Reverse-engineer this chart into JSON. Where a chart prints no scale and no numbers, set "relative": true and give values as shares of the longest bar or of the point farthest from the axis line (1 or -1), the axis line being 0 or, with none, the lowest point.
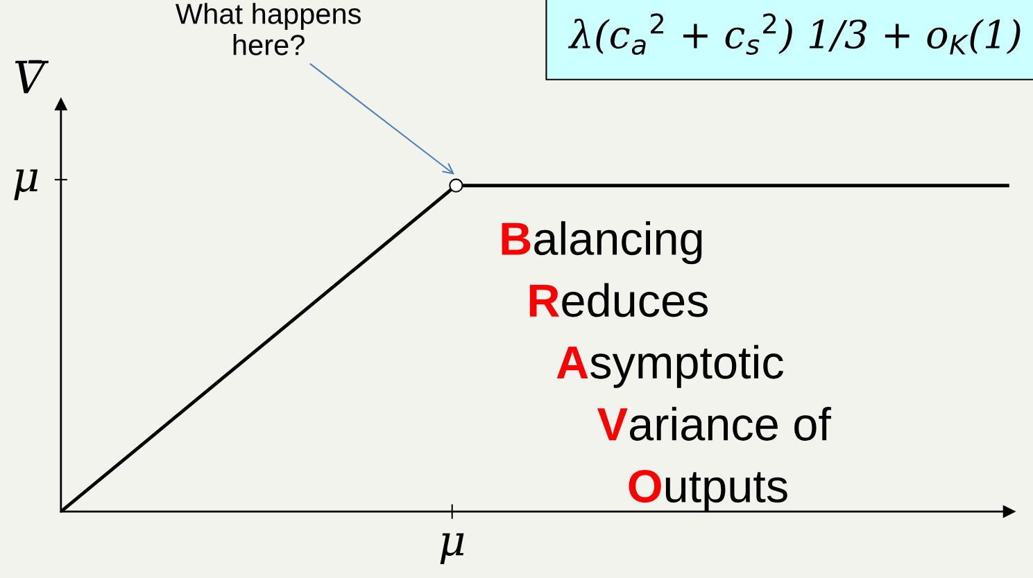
{
  "chart_data": {
    "type": "line",
    "ylabel": "V̄",
    "relative": true,
    "categories": [
      null,
      null,
      null,
      null,
      null,
      null,
      null,
      null,
      null,
      null,
      null,
      null,
      null
    ],
    "series": [
      {
        "color": "#000000",
        "values": [
          0,
          0.2,
          0.4,
          0.6,
          0.8,
          1,
          1,
          1,
          1,
          1,
          1,
          1,
          1
        ]
      }
    ],
    "legend": false,
    "annotations": [
      "What happens\nhere?",
      "μ",
      "μ",
      "λ(c$_{a}$$^{2}$ + c$_{s}$$^{2}$) 1/3 + o$_{K}$(1)",
      "Balancing",
      "Reduces",
      "Asymptotic",
      "Variance of",
      "Outputs"
    ]
  }
}
